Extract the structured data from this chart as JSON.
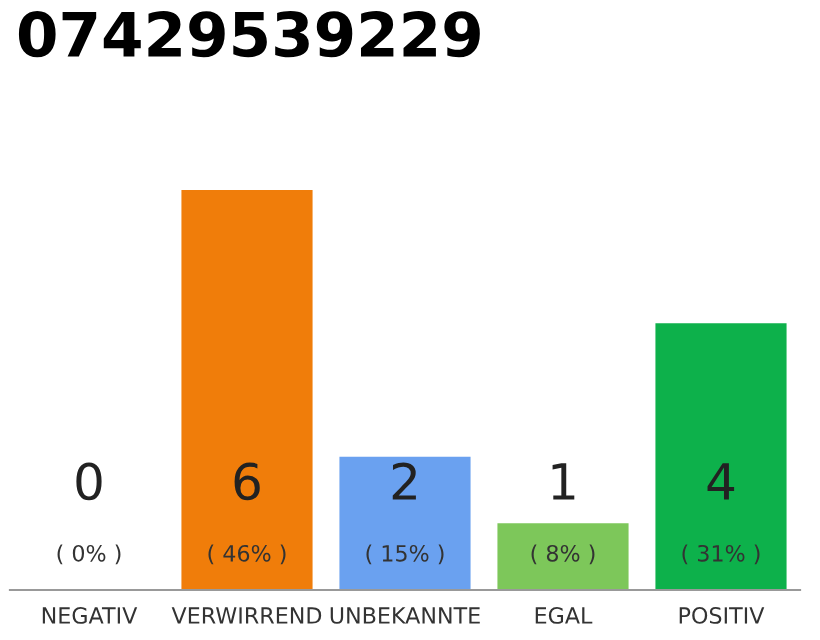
{
  "chart_data": {
    "type": "bar",
    "title": "07429539229",
    "categories": [
      "NEGATIV",
      "VERWIRREND",
      "UNBEKANNTE",
      "EGAL",
      "POSITIV"
    ],
    "values": [
      0,
      6,
      2,
      1,
      4
    ],
    "colors": [
      "#555555",
      "#f07d0a",
      "#6aa1f0",
      "#7dc75a",
      "#0db14b"
    ],
    "data_labels": true,
    "annotations": [
      "( 0% )",
      "( 46% )",
      "( 15% )",
      "( 8% )",
      "( 31% )"
    ],
    "grid": false,
    "legend": false
  }
}
